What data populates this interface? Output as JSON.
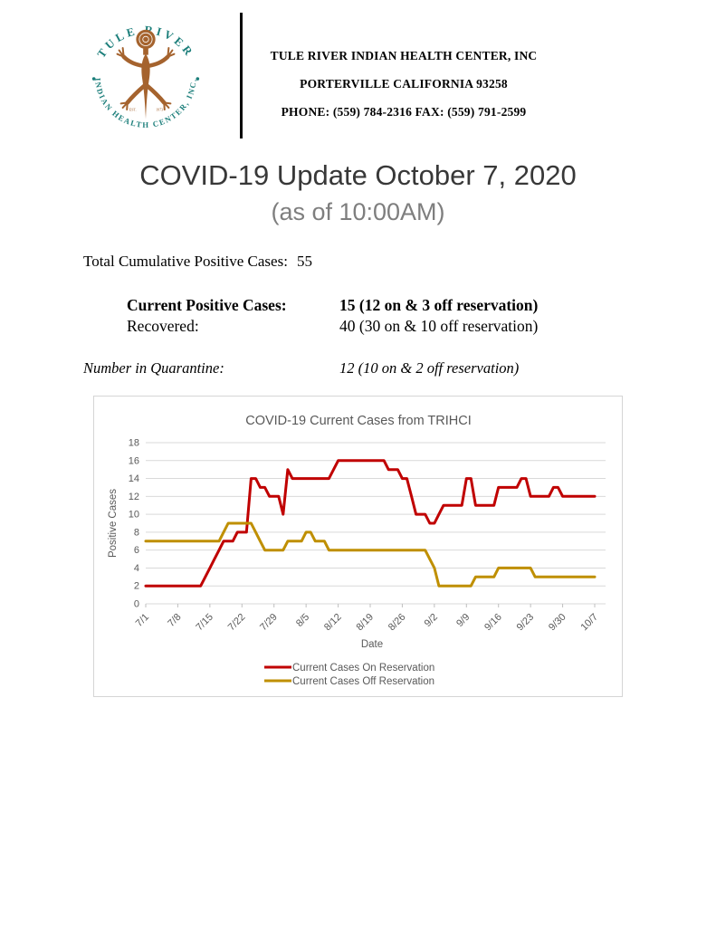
{
  "header": {
    "org_line1": "TULE RIVER INDIAN HEALTH CENTER, INC",
    "org_line2": "PORTERVILLE CALIFORNIA 93258",
    "org_line3": "PHONE: (559) 784-2316 FAX: (559) 791-2599",
    "logo": {
      "arc_top": "TULE RIVER",
      "arc_bottom": "INDIAN HEALTH CENTER, INC.",
      "est_left": "EST.",
      "est_right": "1973",
      "teal": "#1B7E7A",
      "brown": "#A5632E"
    }
  },
  "title": {
    "main": "COVID-19 Update October 7, 2020",
    "subtitle": "(as of 10:00AM)"
  },
  "stats": {
    "total_label": "Total Cumulative Positive Cases:",
    "total_value": "55",
    "current_label": "Current Positive Cases:",
    "current_value": "15 (12 on & 3 off reservation)",
    "recovered_label": "Recovered:",
    "recovered_value": "40 (30 on & 10 off reservation)",
    "quarantine_label": "Number in Quarantine:",
    "quarantine_value": "12 (10 on & 2 off reservation)"
  },
  "chart_data": {
    "type": "line",
    "title": "COVID-19 Current Cases from TRIHCI",
    "xlabel": "Date",
    "ylabel": "Positive Cases",
    "ylim": [
      0,
      18
    ],
    "ytick_step": 2,
    "grid": true,
    "legend_position": "bottom",
    "x_start": "7/1",
    "x_end": "10/7",
    "x_tick_labels": [
      "7/1",
      "7/8",
      "7/15",
      "7/22",
      "7/29",
      "8/5",
      "8/12",
      "8/19",
      "8/26",
      "9/2",
      "9/9",
      "9/16",
      "9/23",
      "9/30",
      "10/7"
    ],
    "x_tick_interval_days": 7,
    "colors": {
      "grid": "#D9D9D9",
      "axis": "#BFBFBF",
      "text": "#595959"
    },
    "series": [
      {
        "name": "Current Cases On Reservation",
        "color": "#C00000",
        "values": [
          2,
          2,
          2,
          2,
          2,
          2,
          2,
          2,
          2,
          2,
          2,
          2,
          2,
          3,
          4,
          5,
          6,
          7,
          7,
          7,
          8,
          8,
          8,
          14,
          14,
          13,
          13,
          12,
          12,
          12,
          10,
          15,
          14,
          14,
          14,
          14,
          14,
          14,
          14,
          14,
          14,
          15,
          16,
          16,
          16,
          16,
          16,
          16,
          16,
          16,
          16,
          16,
          16,
          15,
          15,
          15,
          14,
          14,
          12,
          10,
          10,
          10,
          9,
          9,
          10,
          11,
          11,
          11,
          11,
          11,
          14,
          14,
          11,
          11,
          11,
          11,
          11,
          13,
          13,
          13,
          13,
          13,
          14,
          14,
          12,
          12,
          12,
          12,
          12,
          13,
          13,
          12,
          12,
          12,
          12,
          12,
          12,
          12,
          12
        ]
      },
      {
        "name": "Current Cases Off Reservation",
        "color": "#BF8F00",
        "values": [
          7,
          7,
          7,
          7,
          7,
          7,
          7,
          7,
          7,
          7,
          7,
          7,
          7,
          7,
          7,
          7,
          7,
          8,
          9,
          9,
          9,
          9,
          9,
          9,
          8,
          7,
          6,
          6,
          6,
          6,
          6,
          7,
          7,
          7,
          7,
          8,
          8,
          7,
          7,
          7,
          6,
          6,
          6,
          6,
          6,
          6,
          6,
          6,
          6,
          6,
          6,
          6,
          6,
          6,
          6,
          6,
          6,
          6,
          6,
          6,
          6,
          6,
          5,
          4,
          2,
          2,
          2,
          2,
          2,
          2,
          2,
          2,
          3,
          3,
          3,
          3,
          3,
          4,
          4,
          4,
          4,
          4,
          4,
          4,
          4,
          3,
          3,
          3,
          3,
          3,
          3,
          3,
          3,
          3,
          3,
          3,
          3,
          3,
          3
        ]
      }
    ]
  }
}
